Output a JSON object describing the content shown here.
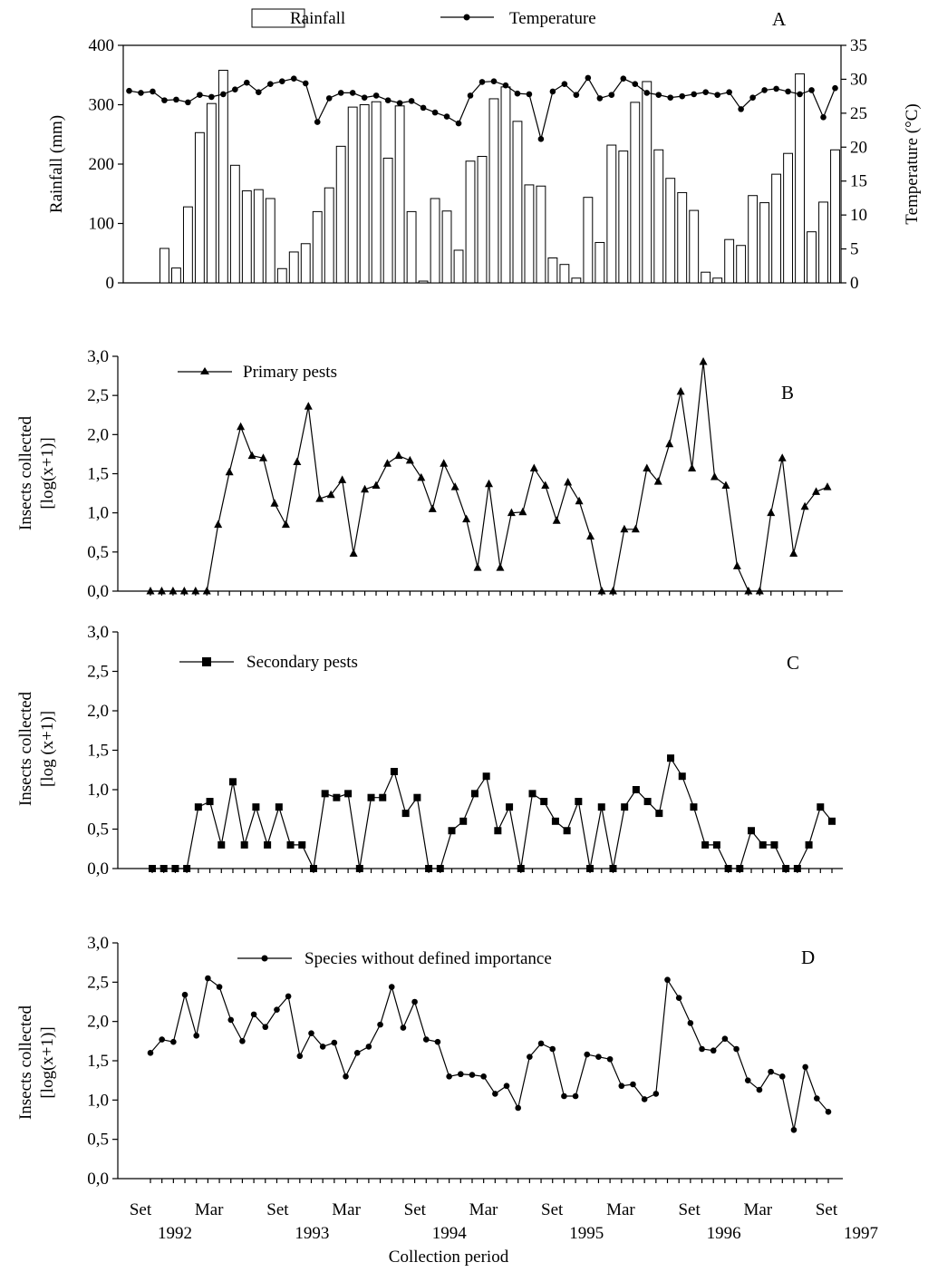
{
  "chart_data": [
    {
      "panel": "A",
      "type": "bar+line",
      "legend": {
        "bar": "Rainfall",
        "line": "Temperature"
      },
      "ylabel_left": "Rainfall (mm)",
      "ylabel_right": "Temperature (°C)",
      "ylim_left": [
        0,
        400
      ],
      "ylim_right": [
        0,
        35
      ],
      "yticks_left": [
        "0",
        "100",
        "200",
        "300",
        "400"
      ],
      "yticks_right": [
        "0",
        "5",
        "10",
        "15",
        "20",
        "25",
        "30",
        "35"
      ],
      "rainfall": [
        0,
        0,
        0,
        58,
        25,
        128,
        253,
        302,
        358,
        198,
        155,
        157,
        142,
        24,
        52,
        66,
        120,
        160,
        230,
        296,
        300,
        305,
        210,
        298,
        120,
        3,
        142,
        121,
        55,
        205,
        213,
        310,
        330,
        272,
        165,
        163,
        42,
        31,
        8,
        144,
        68,
        232,
        222,
        304,
        339,
        224,
        176,
        152,
        122,
        18,
        8,
        73,
        63,
        147,
        135,
        183,
        218,
        352,
        86,
        136,
        224
      ],
      "temperature": [
        28.3,
        28.0,
        28.2,
        26.9,
        27.0,
        26.6,
        27.7,
        27.4,
        27.8,
        28.5,
        29.5,
        28.1,
        29.3,
        29.7,
        30.1,
        29.4,
        23.7,
        27.2,
        28.0,
        28.0,
        27.3,
        27.6,
        26.9,
        26.5,
        26.8,
        25.8,
        25.1,
        24.5,
        23.5,
        27.6,
        29.6,
        29.7,
        29.1,
        27.9,
        27.8,
        21.2,
        28.2,
        29.3,
        27.7,
        30.2,
        27.2,
        27.7,
        30.1,
        29.3,
        28.0,
        27.7,
        27.3,
        27.5,
        27.8,
        28.1,
        27.7,
        28.1,
        25.6,
        27.3,
        28.4,
        28.6,
        28.2,
        27.8,
        28.4,
        24.4,
        28.7
      ]
    },
    {
      "panel": "B",
      "type": "line",
      "legend": "Primary pests",
      "ylabel": [
        "Insects collected",
        "[log(x+1)]"
      ],
      "ylim": [
        0,
        3
      ],
      "yticks": [
        "0,0",
        "0,5",
        "1,0",
        "1,5",
        "2,0",
        "2,5",
        "3,0"
      ],
      "values": [
        0,
        0,
        0,
        0,
        0,
        0,
        0.85,
        1.52,
        2.1,
        1.73,
        1.7,
        1.12,
        0.85,
        1.65,
        2.36,
        1.18,
        1.23,
        1.42,
        0.48,
        1.3,
        1.35,
        1.63,
        1.73,
        1.67,
        1.45,
        1.05,
        1.63,
        1.33,
        0.92,
        0.3,
        1.37,
        0.3,
        1.0,
        1.01,
        1.57,
        1.35,
        0.9,
        1.39,
        1.15,
        0.7,
        0,
        0,
        0.79,
        0.79,
        1.57,
        1.4,
        1.88,
        2.55,
        1.57,
        2.93,
        1.46,
        1.35,
        0.32,
        0,
        0,
        1.0,
        1.7,
        0.48,
        1.08,
        1.27,
        1.33
      ]
    },
    {
      "panel": "C",
      "type": "line",
      "legend": "Secondary pests",
      "ylabel": [
        "Insects collected",
        "[log (x+1)]"
      ],
      "ylim": [
        0,
        3
      ],
      "yticks": [
        "0,0",
        "0,5",
        "1,0",
        "1,5",
        "2,0",
        "2,5",
        "3,0"
      ],
      "values": [
        0,
        0,
        0,
        0,
        0.78,
        0.85,
        0.3,
        1.1,
        0.3,
        0.78,
        0.3,
        0.78,
        0.3,
        0.3,
        0,
        0.95,
        0.9,
        0.95,
        0,
        0.9,
        0.9,
        1.23,
        0.7,
        0.9,
        0,
        0,
        0.48,
        0.6,
        0.95,
        1.17,
        0.48,
        0.78,
        0,
        0.95,
        0.85,
        0.6,
        0.48,
        0.85,
        0,
        0.78,
        0,
        0.78,
        1.0,
        0.85,
        0.7,
        1.4,
        1.17,
        0.78,
        0.3,
        0.3,
        0,
        0,
        0.48,
        0.3,
        0.3,
        0,
        0,
        0.3,
        0.78,
        0.6
      ]
    },
    {
      "panel": "D",
      "type": "line",
      "legend": "Species without defined importance",
      "ylabel": [
        "Insects collected",
        "[log(x+1)]"
      ],
      "ylim": [
        0,
        3
      ],
      "yticks": [
        "0,0",
        "0,5",
        "1,0",
        "1,5",
        "2,0",
        "2,5",
        "3,0"
      ],
      "values": [
        1.6,
        1.77,
        1.74,
        2.34,
        1.82,
        2.55,
        2.44,
        2.02,
        1.75,
        2.09,
        1.93,
        2.15,
        2.32,
        1.56,
        1.85,
        1.68,
        1.73,
        1.3,
        1.6,
        1.68,
        1.96,
        2.44,
        1.92,
        2.25,
        1.77,
        1.74,
        1.3,
        1.33,
        1.32,
        1.3,
        1.08,
        1.18,
        0.9,
        1.55,
        1.72,
        1.65,
        1.05,
        1.05,
        1.58,
        1.55,
        1.52,
        1.18,
        1.2,
        1.01,
        1.08,
        2.53,
        2.3,
        1.98,
        1.65,
        1.63,
        1.78,
        1.65,
        1.25,
        1.13,
        1.36,
        1.3,
        0.62,
        1.42,
        1.02,
        0.85
      ]
    }
  ],
  "x_axis": {
    "label": "Collection period",
    "months": [
      "Set",
      "Mar",
      "Set",
      "Mar",
      "Set",
      "Mar",
      "Set",
      "Mar",
      "Set",
      "Mar",
      "Set"
    ],
    "years": [
      "1992",
      "1993",
      "1994",
      "1995",
      "1996",
      "1997"
    ]
  }
}
